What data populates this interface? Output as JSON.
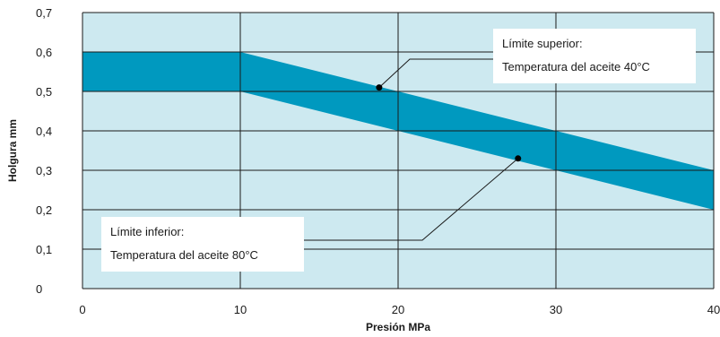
{
  "chart_data": {
    "type": "area",
    "x": [
      0,
      10,
      40
    ],
    "series": [
      {
        "band_upper": [
          0.6,
          0.6,
          0.3
        ],
        "band_lower": [
          0.5,
          0.5,
          0.2
        ]
      }
    ],
    "x_ticks": [
      "0",
      "10",
      "20",
      "30",
      "40"
    ],
    "y_ticks": [
      "0",
      "0,1",
      "0,2",
      "0,3",
      "0,4",
      "0,5",
      "0,6",
      "0,7"
    ],
    "xlabel": "Presión MPa",
    "ylabel": "Holgura mm",
    "xlim": [
      0,
      40
    ],
    "ylim": [
      0,
      0.7
    ],
    "grid": true,
    "annotations": [
      {
        "id": "upper",
        "lines": [
          "Límite superior:",
          "Temperatura del aceite 40°C"
        ],
        "point": [
          18.8,
          0.51
        ]
      },
      {
        "id": "lower",
        "lines": [
          "Límite inferior:",
          "Temperatura del aceite 80°C"
        ],
        "point": [
          27.6,
          0.33
        ]
      }
    ]
  },
  "colors": {
    "plot_bg": "#cde9f0",
    "band": "#0099bf",
    "grid": "#1a1a1a"
  }
}
